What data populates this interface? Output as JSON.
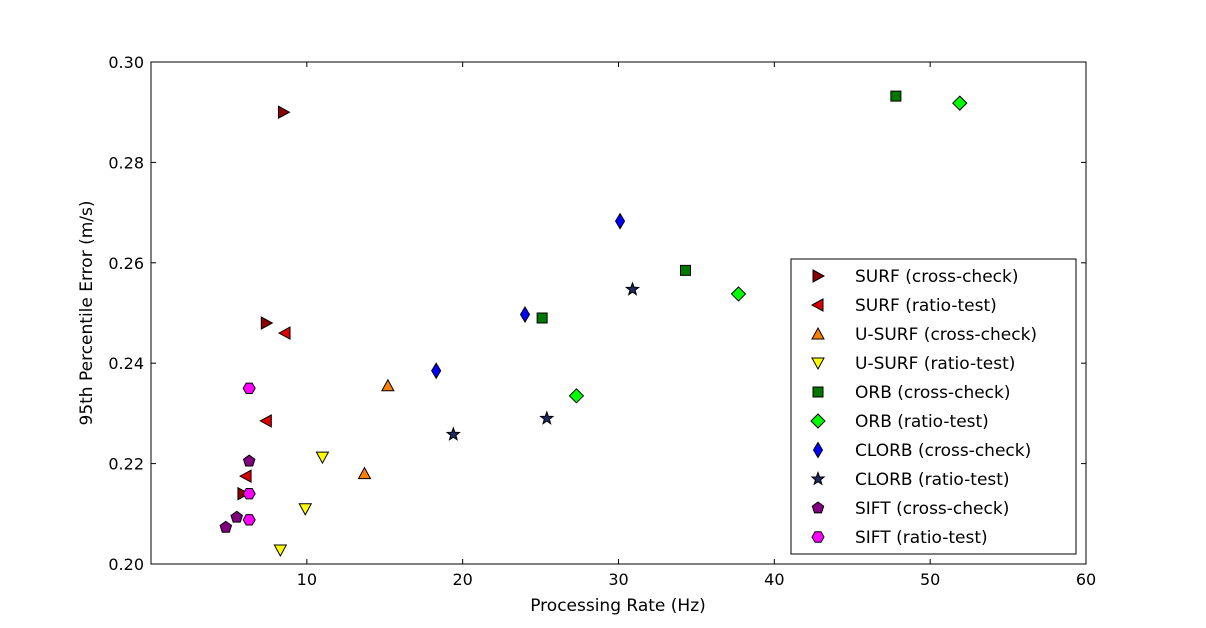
{
  "chart_data": {
    "type": "scatter",
    "xlabel": "Processing Rate (Hz)",
    "ylabel": "95th Percentile Error (m/s)",
    "xlim": [
      0,
      60
    ],
    "ylim": [
      0.2,
      0.3
    ],
    "xticks": [
      "10",
      "20",
      "30",
      "40",
      "50",
      "60"
    ],
    "xtick_values": [
      10,
      20,
      30,
      40,
      50,
      60
    ],
    "yticks": [
      "0.20",
      "0.22",
      "0.24",
      "0.26",
      "0.28",
      "0.30"
    ],
    "ytick_values": [
      0.2,
      0.22,
      0.24,
      0.26,
      0.28,
      0.3
    ],
    "grid": false,
    "legend_position": "lower-right",
    "series": [
      {
        "name": "SURF (cross-check)",
        "marker": "triangle-right",
        "color": "#8b0000",
        "points": [
          [
            8.5,
            0.29
          ],
          [
            7.4,
            0.248
          ],
          [
            5.9,
            0.214
          ]
        ]
      },
      {
        "name": "SURF (ratio-test)",
        "marker": "triangle-left",
        "color": "#dd0000",
        "points": [
          [
            8.6,
            0.246
          ],
          [
            7.4,
            0.2285
          ],
          [
            6.1,
            0.2175
          ]
        ]
      },
      {
        "name": "U-SURF (cross-check)",
        "marker": "triangle-up",
        "color": "#ff8000",
        "points": [
          [
            15.2,
            0.2355
          ],
          [
            13.7,
            0.218
          ]
        ]
      },
      {
        "name": "U-SURF (ratio-test)",
        "marker": "triangle-down",
        "color": "#ffff00",
        "points": [
          [
            11.0,
            0.2213
          ],
          [
            9.9,
            0.211
          ],
          [
            8.3,
            0.2028
          ]
        ]
      },
      {
        "name": "ORB (cross-check)",
        "marker": "square",
        "color": "#007800",
        "points": [
          [
            47.8,
            0.2932
          ],
          [
            34.3,
            0.2585
          ],
          [
            25.1,
            0.249
          ]
        ]
      },
      {
        "name": "ORB (ratio-test)",
        "marker": "diamond",
        "color": "#00ff00",
        "points": [
          [
            51.9,
            0.2918
          ],
          [
            37.7,
            0.2538
          ],
          [
            27.3,
            0.2335
          ]
        ]
      },
      {
        "name": "CLORB (cross-check)",
        "marker": "thin-diamond",
        "color": "#0000ff",
        "points": [
          [
            30.1,
            0.2683
          ],
          [
            24.0,
            0.2497
          ],
          [
            18.3,
            0.2385
          ]
        ]
      },
      {
        "name": "CLORB (ratio-test)",
        "marker": "star",
        "color": "#1f2a60",
        "points": [
          [
            30.9,
            0.2547
          ],
          [
            25.4,
            0.229
          ],
          [
            19.4,
            0.2258
          ]
        ]
      },
      {
        "name": "SIFT (cross-check)",
        "marker": "pentagon",
        "color": "#800080",
        "points": [
          [
            6.3,
            0.2205
          ],
          [
            5.5,
            0.2093
          ],
          [
            4.8,
            0.2073
          ]
        ]
      },
      {
        "name": "SIFT (ratio-test)",
        "marker": "hexagon",
        "color": "#ff00ff",
        "points": [
          [
            6.3,
            0.235
          ],
          [
            6.3,
            0.214
          ],
          [
            6.3,
            0.2088
          ]
        ]
      }
    ]
  }
}
